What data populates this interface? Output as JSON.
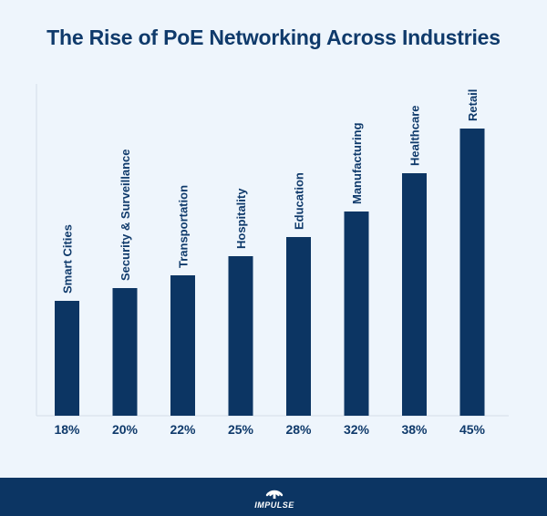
{
  "chart_data": {
    "type": "bar",
    "title": "The Rise of PoE Networking Across Industries",
    "categories": [
      "Smart Cities",
      "Security & Surveillance",
      "Transportation",
      "Hospitality",
      "Education",
      "Manufacturing",
      "Healthcare",
      "Retail"
    ],
    "values": [
      18,
      20,
      22,
      25,
      28,
      32,
      38,
      45
    ],
    "value_labels": [
      "18%",
      "20%",
      "22%",
      "25%",
      "28%",
      "32%",
      "38%",
      "45%"
    ],
    "unit": "%",
    "xlabel": "",
    "ylabel": "",
    "ylim": [
      0,
      52
    ],
    "grid": false,
    "legend": "none",
    "bar_color": "#0c3563",
    "label_color": "#0f3a6b",
    "axis_color": "#d4dde8"
  },
  "footer": {
    "brand": "IMPULSE",
    "logo_icon": "impulse-signal-icon",
    "background": "#0c3563"
  }
}
